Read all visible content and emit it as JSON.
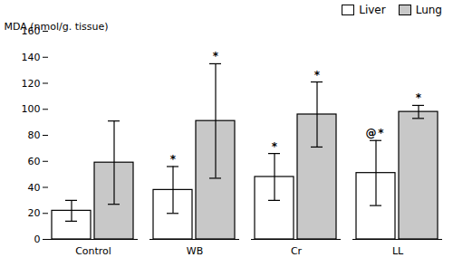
{
  "chart_data": {
    "type": "bar",
    "categories": [
      "Control",
      "WB",
      "Cr",
      "LL"
    ],
    "series": [
      {
        "name": "Liver",
        "color": "#ffffff",
        "values": [
          22,
          38,
          48,
          51
        ],
        "errors": [
          8,
          18,
          18,
          25
        ]
      },
      {
        "name": "Lung",
        "color": "#c8c8c8",
        "values": [
          59,
          91,
          96,
          98
        ],
        "errors": [
          32,
          44,
          25,
          5
        ]
      }
    ],
    "ylabel": "MDA (nmol/g. tissue)",
    "ylim": [
      0,
      160
    ],
    "yticks": [
      0,
      20,
      40,
      60,
      80,
      100,
      120,
      140,
      160
    ],
    "grid": false,
    "legend": "upper right",
    "annotations": [
      {
        "text": "*",
        "category": "WB",
        "series": "Liver"
      },
      {
        "text": "*",
        "category": "WB",
        "series": "Lung"
      },
      {
        "text": "*",
        "category": "Cr",
        "series": "Liver"
      },
      {
        "text": "*",
        "category": "Cr",
        "series": "Lung"
      },
      {
        "text": "@",
        "category": "LL",
        "series": "Liver"
      },
      {
        "text": "*",
        "category": "LL",
        "series": "Liver"
      },
      {
        "text": "*",
        "category": "LL",
        "series": "Lung"
      }
    ]
  }
}
